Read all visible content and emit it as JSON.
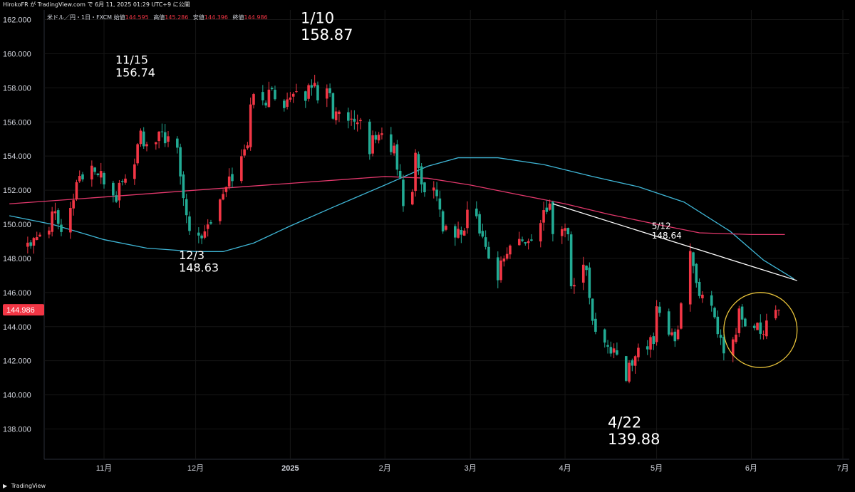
{
  "header": {
    "attribution": "HirokoFR が TradingView.com で 6月 11, 2025 01:29 UTC+9 に公開"
  },
  "legend": {
    "symbol": "米ドル／円・1日・FXCM",
    "open_label": "始値",
    "open": "144.595",
    "high_label": "高値",
    "high": "145.286",
    "low_label": "安値",
    "low": "144.396",
    "close_label": "終値",
    "close": "144.986"
  },
  "footer": {
    "brand": "TradingView",
    "logo": "tradingview-logo-icon"
  },
  "colors": {
    "up": "#f23645",
    "down": "#22ab94",
    "ma_short": "#3fb6d6",
    "ma_long": "#e3386c",
    "trendline": "#ffffff",
    "circle": "#e8c33a",
    "price_tag": "#f23645",
    "background": "#000000"
  },
  "chart_data": {
    "type": "candlestick",
    "title": "",
    "ylim": [
      136.5,
      162.5
    ],
    "y_ticks": [
      "162.000",
      "160.000",
      "158.000",
      "156.000",
      "154.000",
      "152.000",
      "150.000",
      "148.000",
      "146.000",
      "144.000",
      "142.000",
      "140.000",
      "138.000"
    ],
    "x_ticks": [
      {
        "label": "11月",
        "date": "2024-11-01"
      },
      {
        "label": "12月",
        "date": "2024-12-01"
      },
      {
        "label": "2025",
        "date": "2025-01-01"
      },
      {
        "label": "2月",
        "date": "2025-02-01"
      },
      {
        "label": "3月",
        "date": "2025-03-01"
      },
      {
        "label": "4月",
        "date": "2025-04-01"
      },
      {
        "label": "5月",
        "date": "2025-05-01"
      },
      {
        "label": "6月",
        "date": "2025-06-01"
      },
      {
        "label": "7月",
        "date": "2025-07-01"
      }
    ],
    "last_price": "144.986",
    "path": [
      [
        "2024-10-07",
        149.0
      ],
      [
        "2024-10-10",
        149.5
      ],
      [
        "2024-10-14",
        149.9
      ],
      [
        "2024-10-16",
        151.2
      ],
      [
        "2024-10-18",
        149.7
      ],
      [
        "2024-10-21",
        150.8
      ],
      [
        "2024-10-23",
        152.5
      ],
      [
        "2024-10-28",
        153.4
      ],
      [
        "2024-10-30",
        152.9
      ],
      [
        "2024-11-01",
        152.5
      ],
      [
        "2024-11-05",
        151.6
      ],
      [
        "2024-11-07",
        152.7
      ],
      [
        "2024-11-08",
        152.6
      ],
      [
        "2024-11-11",
        153.7
      ],
      [
        "2024-11-13",
        155.4
      ],
      [
        "2024-11-15",
        154.3
      ],
      [
        "2024-11-18",
        154.7
      ],
      [
        "2024-11-20",
        155.4
      ],
      [
        "2024-11-22",
        154.8
      ],
      [
        "2024-11-25",
        154.2
      ],
      [
        "2024-11-27",
        151.5
      ],
      [
        "2024-11-29",
        150.0
      ],
      [
        "2024-12-03",
        149.4
      ],
      [
        "2024-12-05",
        150.0
      ],
      [
        "2024-12-09",
        151.2
      ],
      [
        "2024-12-12",
        152.6
      ],
      [
        "2024-12-16",
        153.8
      ],
      [
        "2024-12-18",
        154.8
      ],
      [
        "2024-12-19",
        157.4
      ],
      [
        "2024-12-23",
        157.1
      ],
      [
        "2024-12-26",
        157.8
      ],
      [
        "2024-12-30",
        157.2
      ],
      [
        "2025-01-02",
        157.3
      ],
      [
        "2025-01-06",
        157.6
      ],
      [
        "2025-01-08",
        158.3
      ],
      [
        "2025-01-10",
        157.7
      ],
      [
        "2025-01-14",
        157.9
      ],
      [
        "2025-01-15",
        156.5
      ],
      [
        "2025-01-17",
        156.3
      ],
      [
        "2025-01-20",
        156.0
      ],
      [
        "2025-01-22",
        155.6
      ],
      [
        "2025-01-24",
        156.0
      ],
      [
        "2025-01-27",
        154.5
      ],
      [
        "2025-01-29",
        155.2
      ],
      [
        "2025-01-31",
        155.2
      ],
      [
        "2025-02-04",
        154.3
      ],
      [
        "2025-02-06",
        152.4
      ],
      [
        "2025-02-07",
        151.2
      ],
      [
        "2025-02-10",
        152.0
      ],
      [
        "2025-02-11",
        154.0
      ],
      [
        "2025-02-13",
        152.6
      ],
      [
        "2025-02-14",
        152.2
      ],
      [
        "2025-02-18",
        151.9
      ],
      [
        "2025-02-20",
        149.7
      ],
      [
        "2025-02-24",
        149.3
      ],
      [
        "2025-02-26",
        149.4
      ],
      [
        "2025-02-28",
        150.6
      ],
      [
        "2025-03-03",
        150.4
      ],
      [
        "2025-03-05",
        149.4
      ],
      [
        "2025-03-07",
        147.9
      ],
      [
        "2025-03-10",
        147.1
      ],
      [
        "2025-03-12",
        148.2
      ],
      [
        "2025-03-14",
        148.6
      ],
      [
        "2025-03-17",
        149.2
      ],
      [
        "2025-03-19",
        148.7
      ],
      [
        "2025-03-21",
        149.3
      ],
      [
        "2025-03-24",
        150.3
      ],
      [
        "2025-03-26",
        150.6
      ],
      [
        "2025-03-27",
        151.0
      ],
      [
        "2025-03-28",
        149.8
      ],
      [
        "2025-03-31",
        149.9
      ],
      [
        "2025-04-02",
        149.5
      ],
      [
        "2025-04-03",
        146.3
      ],
      [
        "2025-04-04",
        146.7
      ],
      [
        "2025-04-07",
        147.8
      ],
      [
        "2025-04-09",
        146.1
      ],
      [
        "2025-04-10",
        144.6
      ],
      [
        "2025-04-11",
        143.5
      ],
      [
        "2025-04-14",
        143.1
      ],
      [
        "2025-04-16",
        142.5
      ],
      [
        "2025-04-18",
        142.2
      ],
      [
        "2025-04-21",
        140.9
      ],
      [
        "2025-04-22",
        141.6
      ],
      [
        "2025-04-24",
        142.6
      ],
      [
        "2025-04-28",
        143.0
      ],
      [
        "2025-04-30",
        142.9
      ],
      [
        "2025-05-01",
        145.4
      ],
      [
        "2025-05-02",
        144.9
      ],
      [
        "2025-05-05",
        143.7
      ],
      [
        "2025-05-07",
        142.9
      ],
      [
        "2025-05-09",
        145.4
      ],
      [
        "2025-05-12",
        148.4
      ],
      [
        "2025-05-14",
        146.7
      ],
      [
        "2025-05-16",
        145.6
      ],
      [
        "2025-05-19",
        144.8
      ],
      [
        "2025-05-21",
        143.6
      ],
      [
        "2025-05-23",
        142.6
      ],
      [
        "2025-05-26",
        142.9
      ],
      [
        "2025-05-28",
        144.8
      ],
      [
        "2025-05-30",
        144.0
      ],
      [
        "2025-06-02",
        143.7
      ],
      [
        "2025-06-03",
        144.0
      ],
      [
        "2025-06-05",
        143.5
      ],
      [
        "2025-06-06",
        144.8
      ],
      [
        "2025-06-09",
        144.6
      ],
      [
        "2025-06-10",
        144.986
      ]
    ],
    "ma_short": [
      [
        "2024-10-01",
        150.5
      ],
      [
        "2024-10-15",
        150.0
      ],
      [
        "2024-11-01",
        149.1
      ],
      [
        "2024-11-15",
        148.6
      ],
      [
        "2024-12-01",
        148.4
      ],
      [
        "2024-12-10",
        148.4
      ],
      [
        "2024-12-20",
        148.9
      ],
      [
        "2025-01-01",
        149.9
      ],
      [
        "2025-01-15",
        151.0
      ],
      [
        "2025-02-01",
        152.3
      ],
      [
        "2025-02-15",
        153.4
      ],
      [
        "2025-02-25",
        153.9
      ],
      [
        "2025-03-10",
        153.9
      ],
      [
        "2025-03-25",
        153.5
      ],
      [
        "2025-04-10",
        152.8
      ],
      [
        "2025-04-25",
        152.2
      ],
      [
        "2025-05-10",
        151.3
      ],
      [
        "2025-05-25",
        149.6
      ],
      [
        "2025-06-05",
        147.9
      ],
      [
        "2025-06-15",
        146.8
      ]
    ],
    "ma_long": [
      [
        "2024-10-01",
        151.2
      ],
      [
        "2024-11-01",
        151.6
      ],
      [
        "2024-12-01",
        152.0
      ],
      [
        "2025-01-01",
        152.4
      ],
      [
        "2025-02-01",
        152.8
      ],
      [
        "2025-02-15",
        152.7
      ],
      [
        "2025-03-01",
        152.3
      ],
      [
        "2025-03-15",
        151.8
      ],
      [
        "2025-04-01",
        151.2
      ],
      [
        "2025-04-15",
        150.6
      ],
      [
        "2025-05-01",
        150.0
      ],
      [
        "2025-05-15",
        149.5
      ],
      [
        "2025-06-01",
        149.4
      ],
      [
        "2025-06-12",
        149.4
      ]
    ],
    "trendline": [
      [
        "2025-03-28",
        151.2
      ],
      [
        "2025-06-16",
        146.7
      ]
    ],
    "circle": {
      "center": [
        "2025-06-04",
        143.8
      ],
      "radius_days": 12,
      "radius_price": 2.2
    },
    "annotations": [
      {
        "date_label": "11/15",
        "price": "156.74",
        "x": "2024-11-15",
        "y": 156.74,
        "size": "medium"
      },
      {
        "date_label": "12/3",
        "price": "148.63",
        "x": "2024-12-03",
        "y": 148.63,
        "size": "medium"
      },
      {
        "date_label": "1/10",
        "price": "158.87",
        "x": "2025-01-10",
        "y": 158.87,
        "size": "large"
      },
      {
        "date_label": "4/22",
        "price": "139.88",
        "x": "2025-04-22",
        "y": 139.88,
        "size": "large"
      },
      {
        "date_label": "5/12",
        "price": "148.64",
        "x": "2025-05-12",
        "y": 148.64,
        "size": "small"
      }
    ]
  }
}
